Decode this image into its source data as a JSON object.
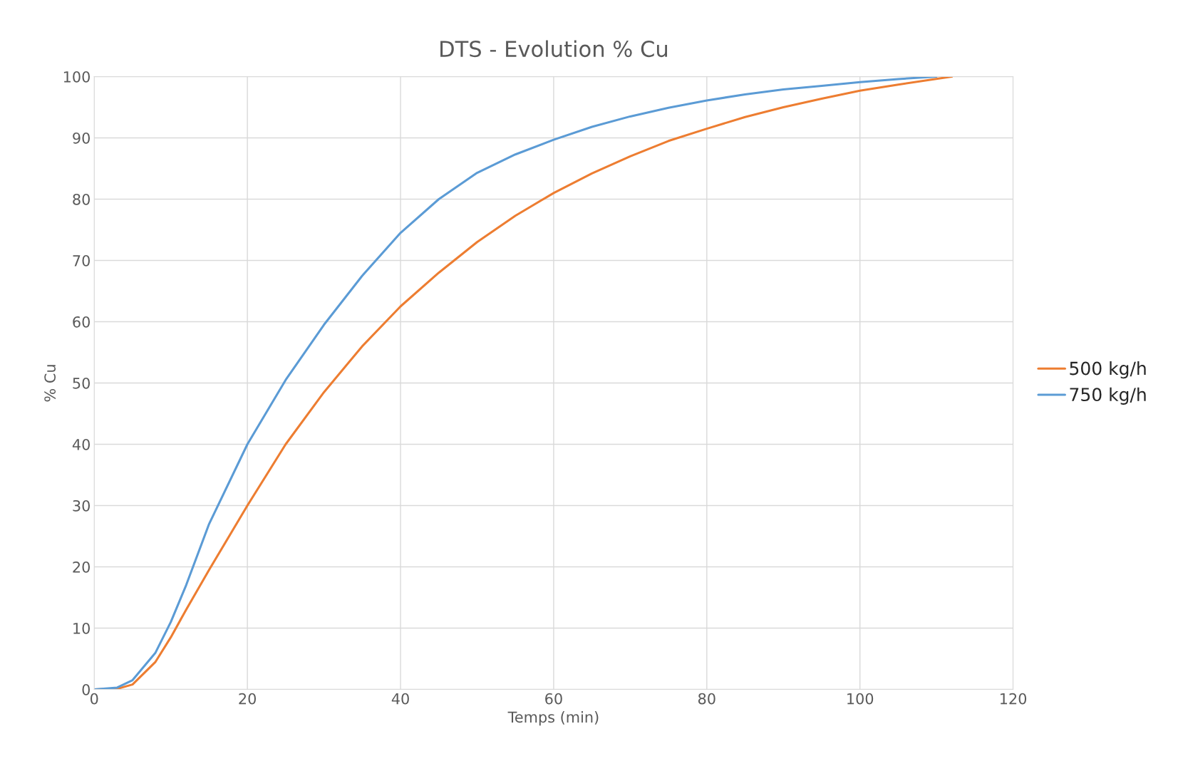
{
  "chart_data": {
    "type": "line",
    "title": "DTS - Evolution % Cu",
    "xlabel": "Temps (min)",
    "ylabel": "% Cu",
    "xlim": [
      0,
      120
    ],
    "xticks": [
      0,
      20,
      40,
      60,
      80,
      100,
      120
    ],
    "ylim": [
      0,
      100
    ],
    "yticks": [
      0,
      10,
      20,
      30,
      40,
      50,
      60,
      70,
      80,
      90,
      100
    ],
    "grid": true,
    "legend": "right",
    "marker": "none",
    "line_style": "solid",
    "series": [
      {
        "name": "500 kg/h",
        "color": "#ed7d31",
        "x": [
          0,
          3,
          5,
          8,
          10,
          12,
          15,
          20,
          25,
          30,
          35,
          40,
          45,
          50,
          55,
          60,
          65,
          70,
          75,
          80,
          85,
          90,
          95,
          100,
          105,
          112
        ],
        "values": [
          0,
          0.1,
          0.8,
          4.5,
          8.5,
          13,
          19.5,
          30,
          40,
          48.5,
          56,
          62.5,
          68,
          73,
          77.3,
          81,
          84.2,
          87,
          89.5,
          91.5,
          93.4,
          95,
          96.4,
          97.7,
          98.7,
          100
        ]
      },
      {
        "name": "750 kg/h",
        "color": "#5b9bd5",
        "x": [
          0,
          3,
          5,
          8,
          10,
          12,
          15,
          20,
          25,
          30,
          35,
          40,
          45,
          50,
          55,
          60,
          65,
          70,
          75,
          80,
          85,
          90,
          95,
          100,
          105,
          110
        ],
        "values": [
          0,
          0.3,
          1.5,
          6,
          11,
          17,
          27,
          40,
          50.5,
          59.5,
          67.5,
          74.5,
          80,
          84.3,
          87.3,
          89.7,
          91.8,
          93.5,
          94.9,
          96.1,
          97.1,
          97.9,
          98.5,
          99.1,
          99.6,
          100
        ]
      }
    ]
  }
}
